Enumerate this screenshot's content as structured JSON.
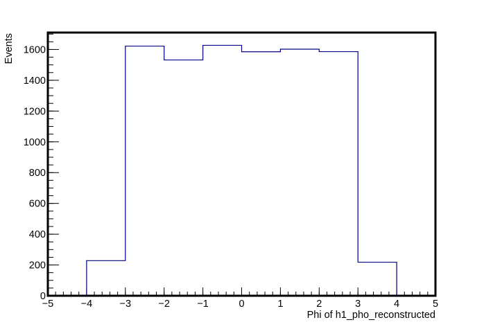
{
  "chart_data": {
    "type": "bar",
    "style": "step-histogram",
    "xlabel": "Phi of h1_pho_reconstructed",
    "ylabel": "Events",
    "xlim": [
      -5,
      5
    ],
    "ylim": [
      0,
      1710
    ],
    "x_ticks": [
      -5,
      -4,
      -3,
      -2,
      -1,
      0,
      1,
      2,
      3,
      4,
      5
    ],
    "x_tick_labels": [
      "−5",
      "−4",
      "−3",
      "−2",
      "−1",
      "0",
      "1",
      "2",
      "3",
      "4",
      "5"
    ],
    "y_ticks": [
      0,
      200,
      400,
      600,
      800,
      1000,
      1200,
      1400,
      1600
    ],
    "y_tick_labels": [
      "0",
      "200",
      "400",
      "600",
      "800",
      "1000",
      "1200",
      "1400",
      "1600"
    ],
    "bin_edges": [
      -5,
      -4,
      -3,
      -2,
      -1,
      0,
      1,
      2,
      3,
      4,
      5
    ],
    "values": [
      0,
      228,
      1622,
      1532,
      1627,
      1585,
      1602,
      1586,
      218,
      0
    ],
    "line_color": "#000080",
    "grid": false
  }
}
